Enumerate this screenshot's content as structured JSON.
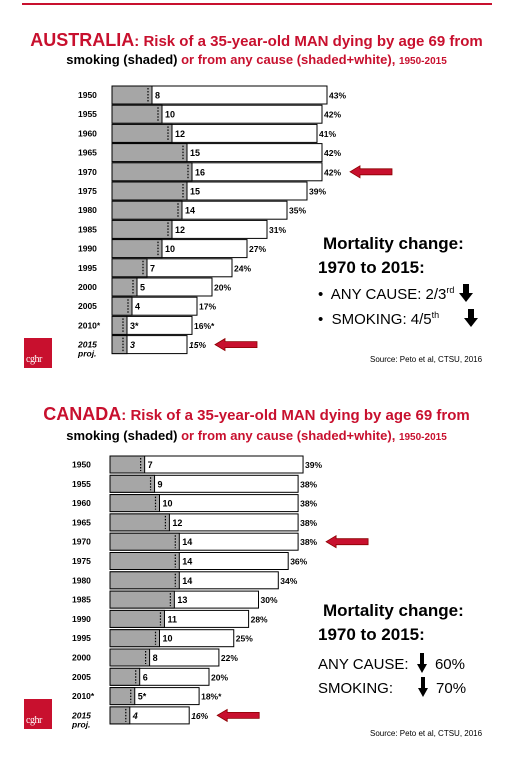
{
  "chart_data": [
    {
      "type": "bar",
      "title": "AUSTRALIA: Risk of a 35-year-old MAN dying by age 69 from smoking (shaded) or from any cause (shaded+white), 1950-2015",
      "country": "AUSTRALIA",
      "title_risk": ": Risk of a 35-year-old MAN dying by age 69 from",
      "title_line2_smoking": "smoking (shaded)",
      "title_line2_any": "or from any cause (shaded+white),",
      "title_line2_years": "1950-2015",
      "categories": [
        "1950",
        "1955",
        "1960",
        "1965",
        "1970",
        "1975",
        "1980",
        "1985",
        "1990",
        "1995",
        "2000",
        "2005",
        "2010*",
        "2015 proj."
      ],
      "category_labels": [
        "1950",
        "1955",
        "1960",
        "1965",
        "1970",
        "1975",
        "1980",
        "1985",
        "1990",
        "1995",
        "2000",
        "2005",
        "2010*",
        "2015"
      ],
      "category_sub": "proj.",
      "series": [
        {
          "name": "smoking (shaded)",
          "values": [
            8,
            10,
            12,
            15,
            16,
            15,
            14,
            12,
            10,
            7,
            5,
            4,
            3,
            3
          ]
        },
        {
          "name": "any cause (shaded+white)",
          "values": [
            43,
            42,
            41,
            42,
            42,
            39,
            35,
            31,
            27,
            24,
            20,
            17,
            16,
            15
          ]
        }
      ],
      "smoking_labels": [
        "8",
        "10",
        "12",
        "15",
        "16",
        "15",
        "14",
        "12",
        "10",
        "7",
        "5",
        "4",
        "3*",
        "3"
      ],
      "any_labels": [
        "43%",
        "42%",
        "41%",
        "42%",
        "42%",
        "39%",
        "35%",
        "31%",
        "27%",
        "24%",
        "20%",
        "17%",
        "16%*",
        "15%"
      ],
      "highlight": [
        "1970",
        "2015 proj."
      ],
      "mortality_title1": "Mortality change:",
      "mortality_title2": "1970 to 2015:",
      "mortality_any": "ANY CAUSE: 2/3",
      "mortality_any_sup": "rd",
      "mortality_smoking": "SMOKING: 4/5",
      "mortality_smoking_sup": "th",
      "bullet": "•",
      "source": "Source: Peto et al, CTSU, 2016",
      "logo_text": "cghr"
    },
    {
      "type": "bar",
      "title": "CANADA: Risk of a 35-year-old MAN dying by age 69 from smoking (shaded) or from any cause (shaded+white), 1950-2015",
      "country": "CANADA",
      "title_risk": ": Risk of a 35-year-old MAN dying by age 69 from",
      "title_line2_smoking": "smoking (shaded)",
      "title_line2_any": "or from any cause (shaded+white),",
      "title_line2_years": "1950-2015",
      "categories": [
        "1950",
        "1955",
        "1960",
        "1965",
        "1970",
        "1975",
        "1980",
        "1985",
        "1990",
        "1995",
        "2000",
        "2005",
        "2010*",
        "2015 proj."
      ],
      "category_labels": [
        "1950",
        "1955",
        "1960",
        "1965",
        "1970",
        "1975",
        "1980",
        "1985",
        "1990",
        "1995",
        "2000",
        "2005",
        "2010*",
        "2015"
      ],
      "category_sub": "proj.",
      "series": [
        {
          "name": "smoking (shaded)",
          "values": [
            7,
            9,
            10,
            12,
            14,
            14,
            14,
            13,
            11,
            10,
            8,
            6,
            5,
            4
          ]
        },
        {
          "name": "any cause (shaded+white)",
          "values": [
            39,
            38,
            38,
            38,
            38,
            36,
            34,
            30,
            28,
            25,
            22,
            20,
            18,
            16
          ]
        }
      ],
      "smoking_labels": [
        "7",
        "9",
        "10",
        "12",
        "14",
        "14",
        "14",
        "13",
        "11",
        "10",
        "8",
        "6",
        "5*",
        "4"
      ],
      "any_labels": [
        "39%",
        "38%",
        "38%",
        "38%",
        "38%",
        "36%",
        "34%",
        "30%",
        "28%",
        "25%",
        "22%",
        "20%",
        "18%*",
        "16%"
      ],
      "highlight": [
        "1970",
        "2015 proj."
      ],
      "mortality_title1": "Mortality change:",
      "mortality_title2": "1970 to 2015:",
      "mortality_any_label": "ANY CAUSE:",
      "mortality_any_value": "60%",
      "mortality_smoking_label": "SMOKING:",
      "mortality_smoking_value": "70%",
      "source": "Source: Peto et al, CTSU, 2016",
      "logo_text": "cghr"
    }
  ],
  "colors": {
    "accent_red": "#c8102e",
    "shaded_bar": "#a6a6a6",
    "white_bar": "#ffffff",
    "bar_border": "#000000"
  }
}
